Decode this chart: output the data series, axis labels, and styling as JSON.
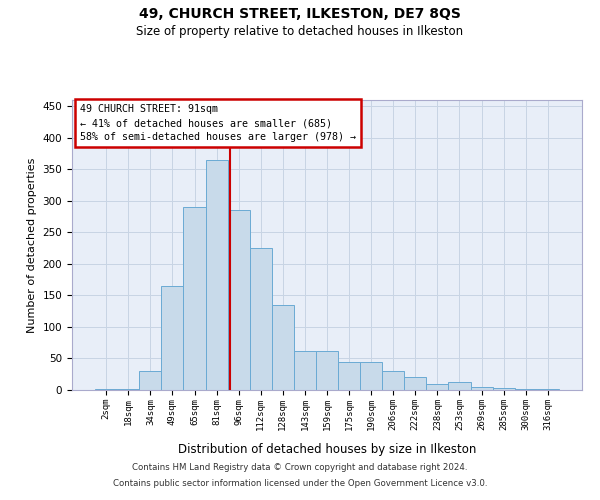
{
  "title1": "49, CHURCH STREET, ILKESTON, DE7 8QS",
  "title2": "Size of property relative to detached houses in Ilkeston",
  "xlabel": "Distribution of detached houses by size in Ilkeston",
  "ylabel": "Number of detached properties",
  "categories": [
    "2sqm",
    "18sqm",
    "34sqm",
    "49sqm",
    "65sqm",
    "81sqm",
    "96sqm",
    "112sqm",
    "128sqm",
    "143sqm",
    "159sqm",
    "175sqm",
    "190sqm",
    "206sqm",
    "222sqm",
    "238sqm",
    "253sqm",
    "269sqm",
    "285sqm",
    "300sqm",
    "316sqm"
  ],
  "values": [
    2,
    2,
    30,
    165,
    290,
    365,
    285,
    225,
    135,
    62,
    62,
    44,
    44,
    30,
    21,
    9,
    12,
    5,
    3,
    2,
    1
  ],
  "bar_color": "#c8daea",
  "bar_edge_color": "#6aaad4",
  "annotation_text_line1": "49 CHURCH STREET: 91sqm",
  "annotation_text_line2": "← 41% of detached houses are smaller (685)",
  "annotation_text_line3": "58% of semi-detached houses are larger (978) →",
  "annotation_box_facecolor": "#ffffff",
  "annotation_box_edgecolor": "#cc0000",
  "vline_color": "#cc0000",
  "grid_color": "#c8d4e4",
  "background_color": "#e8eef8",
  "footer_line1": "Contains HM Land Registry data © Crown copyright and database right 2024.",
  "footer_line2": "Contains public sector information licensed under the Open Government Licence v3.0.",
  "ylim": [
    0,
    460
  ],
  "vline_index": 5.62
}
